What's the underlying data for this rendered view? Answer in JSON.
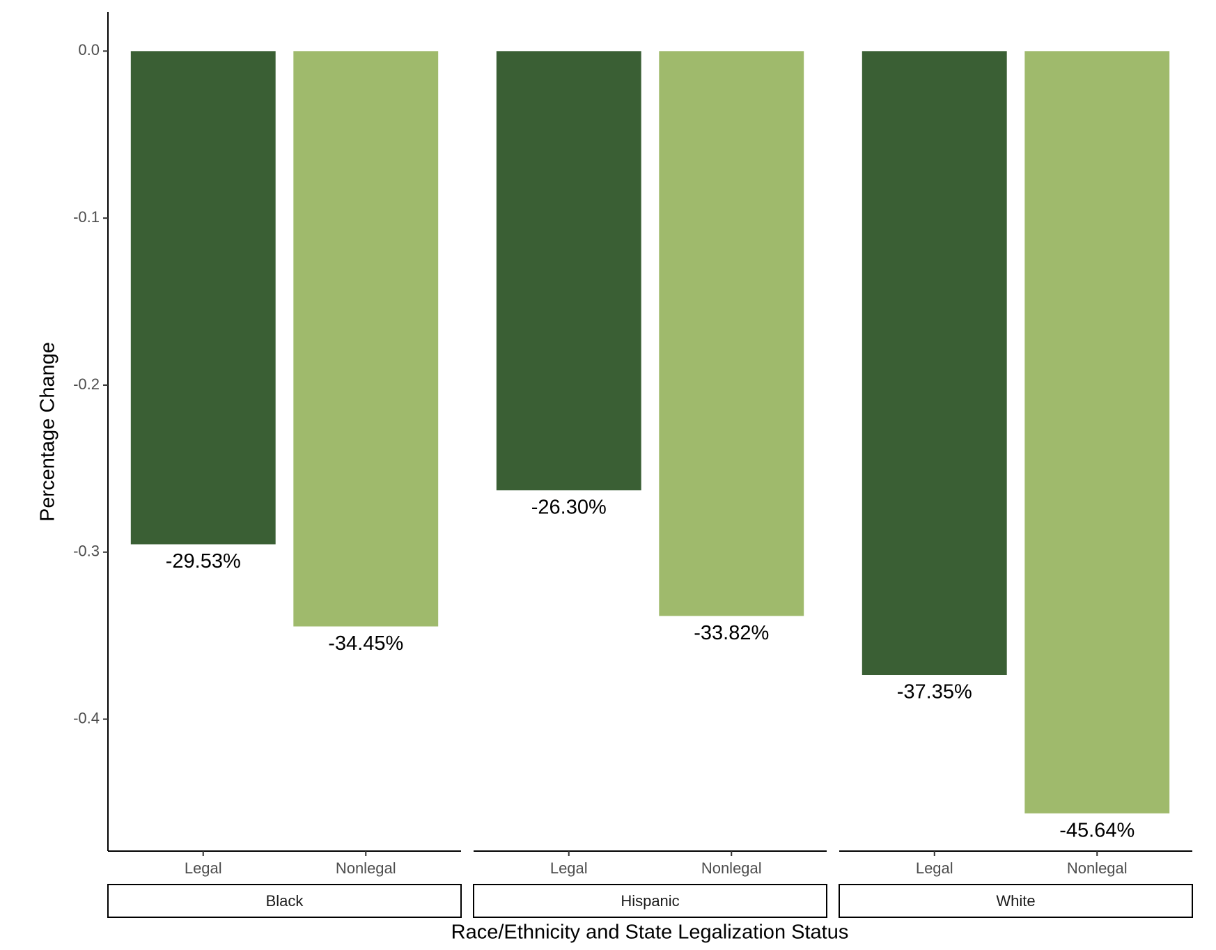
{
  "chart_data": {
    "type": "bar",
    "x_label": "Race/Ethnicity and State Legalization Status",
    "y_label": "Percentage Change",
    "ylim": [
      -0.479,
      0.0235
    ],
    "yticks": [
      {
        "value": 0,
        "label": "0.0"
      },
      -0.1,
      -0.2,
      -0.3,
      -0.4
    ],
    "colors": [
      "#3a5f34",
      "#9fba6c"
    ],
    "facets": [
      {
        "name": "Black",
        "categories": [
          "Legal",
          "Nonlegal"
        ],
        "values": [
          -0.2953,
          -0.3445
        ],
        "value_labels": [
          "-29.53%",
          "-34.45%"
        ]
      },
      {
        "name": "Hispanic",
        "categories": [
          "Legal",
          "Nonlegal"
        ],
        "values": [
          -0.263,
          -0.3382
        ],
        "value_labels": [
          "-26.30%",
          "-33.82%"
        ]
      },
      {
        "name": "White",
        "categories": [
          "Legal",
          "Nonlegal"
        ],
        "values": [
          -0.3735,
          -0.4564
        ],
        "value_labels": [
          "-37.35%",
          "-45.64%"
        ]
      }
    ]
  }
}
